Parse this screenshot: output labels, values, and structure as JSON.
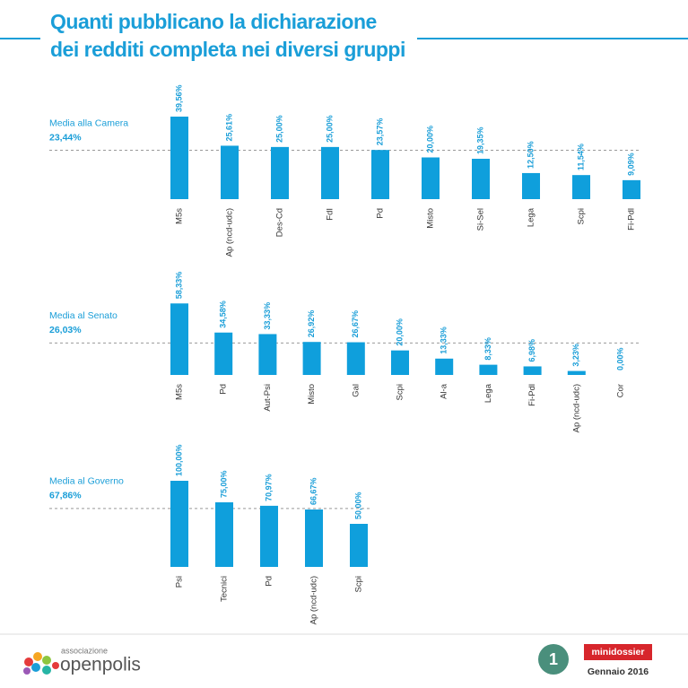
{
  "header": {
    "title": [
      "Quanti pubblicano la dichiarazione",
      "dei redditi completa nei diversi gruppi"
    ]
  },
  "chart_data": [
    {
      "type": "bar",
      "color": "#0f9fdc",
      "average": {
        "label": "Media alla Camera",
        "value": 23.44,
        "value_label": "23,44%"
      },
      "categories": [
        "M5s",
        "Ap (ncd-udc)",
        "Des-Cd",
        "FdI",
        "Pd",
        "Misto",
        "Si-Sel",
        "Lega",
        "Scpi",
        "Fi-Pdl"
      ],
      "values": [
        39.56,
        25.61,
        25.0,
        25.0,
        23.57,
        20.0,
        19.35,
        12.5,
        11.54,
        9.09
      ],
      "value_labels": [
        "39,56%",
        "25,61%",
        "25,00%",
        "25,00%",
        "23,57%",
        "20,00%",
        "19,35%",
        "12,50%",
        "11,54%",
        "9,09%"
      ],
      "ylim": [
        0,
        40
      ]
    },
    {
      "type": "bar",
      "color": "#0f9fdc",
      "average": {
        "label": "Media al Senato",
        "value": 26.03,
        "value_label": "26,03%"
      },
      "categories": [
        "M5s",
        "Pd",
        "Aut-Psi",
        "Misto",
        "Gal",
        "Scpi",
        "Al-a",
        "Lega",
        "Fi-Pdl",
        "Ap (ncd-udc)",
        "Cor"
      ],
      "values": [
        58.33,
        34.58,
        33.33,
        26.92,
        26.67,
        20.0,
        13.33,
        8.33,
        6.98,
        3.23,
        0.0
      ],
      "value_labels": [
        "58,33%",
        "34,58%",
        "33,33%",
        "26,92%",
        "26,67%",
        "20,00%",
        "13,33%",
        "8,33%",
        "6,98%",
        "3,23%",
        "0,00%"
      ],
      "ylim": [
        0,
        60
      ]
    },
    {
      "type": "bar",
      "color": "#0f9fdc",
      "average": {
        "label": "Media al Governo",
        "value": 67.86,
        "value_label": "67,86%"
      },
      "categories": [
        "Psi",
        "Tecnici",
        "Pd",
        "Ap (ncd-udc)",
        "Scpi"
      ],
      "values": [
        100.0,
        75.0,
        70.97,
        66.67,
        50.0
      ],
      "value_labels": [
        "100,00%",
        "75,00%",
        "70,97%",
        "66,67%",
        "50,00%"
      ],
      "ylim": [
        0,
        100
      ]
    }
  ],
  "footer": {
    "association": "associazione",
    "brand": "openpolis",
    "number": "1",
    "series": "minidossier",
    "date": "Gennaio 2016"
  }
}
